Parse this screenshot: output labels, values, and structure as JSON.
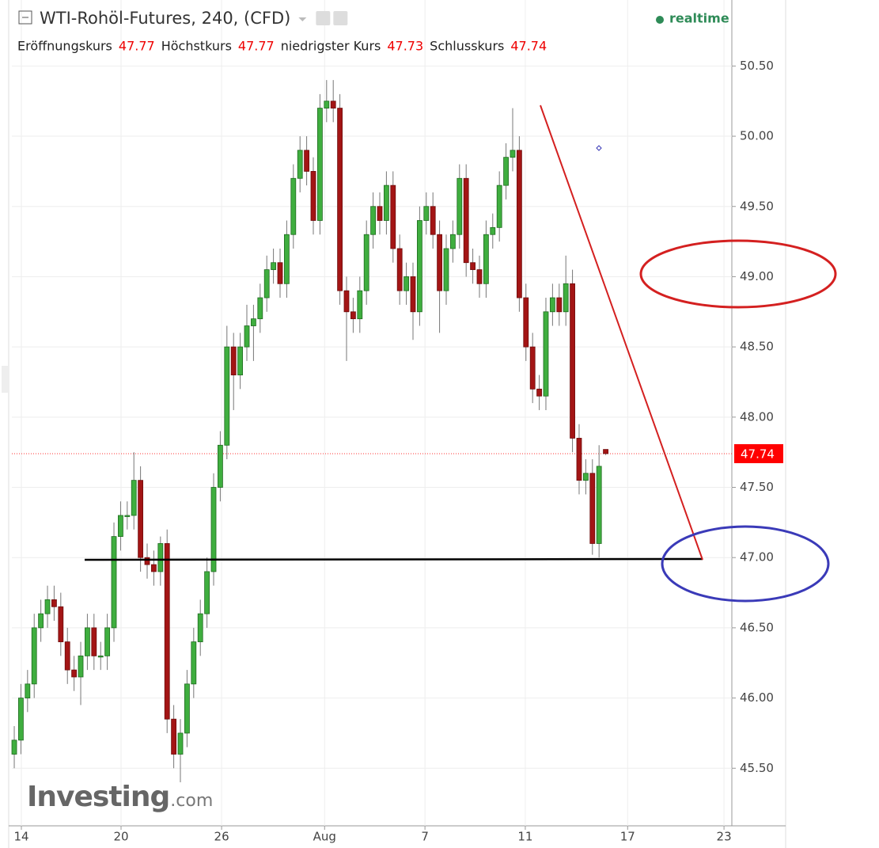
{
  "chart_data": {
    "type": "candlestick",
    "title": "WTI-Rohöl-Futures, 240, (CFD)",
    "status": "realtime",
    "ohlc_labels": [
      "Eröffnungskurs",
      "Höchstkurs",
      "niedrigster Kurs",
      "Schlusskurs"
    ],
    "ohlc_values": [
      47.77,
      47.77,
      47.73,
      47.74
    ],
    "watermark": "Investing",
    "watermark_suffix": ".com",
    "last_price": 47.74,
    "up_color": "#3fae3f",
    "down_color": "#a31515",
    "x": [
      0,
      1,
      2,
      3,
      4,
      5,
      6,
      7,
      8,
      9,
      10,
      11,
      12,
      13,
      14,
      15,
      16,
      17,
      18,
      19,
      20,
      21,
      22,
      23,
      24,
      25,
      26,
      27,
      28,
      29,
      30,
      31,
      32,
      33,
      34,
      35,
      36,
      37,
      38,
      39,
      40,
      41,
      42,
      43,
      44,
      45,
      46,
      47,
      48,
      49,
      50,
      51,
      52,
      53,
      54,
      55,
      56,
      57,
      58,
      59,
      60,
      61,
      62,
      63,
      64,
      65,
      66,
      67,
      68,
      69,
      70,
      71,
      72,
      73,
      74,
      75,
      76,
      77,
      78,
      79,
      80,
      81,
      82,
      83,
      84,
      85,
      86,
      87,
      88,
      89
    ],
    "open": [
      45.6,
      45.7,
      46.0,
      46.1,
      46.5,
      46.6,
      46.7,
      46.65,
      46.4,
      46.2,
      46.15,
      46.3,
      46.5,
      46.3,
      46.3,
      46.5,
      47.15,
      47.3,
      47.3,
      47.55,
      47.0,
      46.95,
      46.9,
      47.1,
      45.85,
      45.6,
      45.75,
      46.1,
      46.4,
      46.6,
      46.9,
      47.5,
      47.8,
      48.5,
      48.3,
      48.5,
      48.65,
      48.7,
      48.85,
      49.05,
      49.1,
      48.95,
      49.3,
      49.7,
      49.9,
      49.75,
      49.4,
      50.2,
      50.25,
      50.2,
      48.9,
      48.75,
      48.7,
      48.9,
      49.3,
      49.5,
      49.4,
      49.65,
      49.2,
      48.9,
      49.0,
      48.75,
      49.4,
      49.5,
      49.3,
      48.9,
      49.2,
      49.3,
      49.7,
      49.1,
      49.05,
      48.95,
      49.3,
      49.35,
      49.65,
      49.85,
      49.9,
      48.85,
      48.5,
      48.2,
      48.15,
      48.75,
      48.85,
      48.75,
      48.95,
      47.85,
      47.55,
      47.6,
      47.1,
      47.77
    ],
    "high": [
      45.8,
      46.1,
      46.2,
      46.6,
      46.7,
      46.8,
      46.8,
      46.75,
      46.5,
      46.3,
      46.4,
      46.6,
      46.6,
      46.4,
      46.6,
      47.25,
      47.4,
      47.4,
      47.75,
      47.65,
      47.1,
      47.05,
      47.15,
      47.2,
      45.95,
      45.85,
      46.2,
      46.5,
      46.7,
      47.0,
      47.6,
      47.9,
      48.65,
      48.6,
      48.6,
      48.8,
      48.8,
      48.95,
      49.15,
      49.2,
      49.2,
      49.4,
      49.8,
      50.0,
      50.0,
      49.85,
      50.3,
      50.4,
      50.4,
      50.3,
      49.0,
      48.85,
      49.0,
      49.4,
      49.6,
      49.6,
      49.75,
      49.75,
      49.3,
      49.1,
      49.1,
      49.5,
      49.6,
      49.6,
      49.4,
      49.3,
      49.4,
      49.8,
      49.8,
      49.2,
      49.15,
      49.4,
      49.45,
      49.75,
      49.95,
      50.2,
      50.0,
      48.95,
      48.6,
      48.3,
      48.85,
      48.95,
      48.95,
      49.15,
      49.05,
      47.95,
      47.7,
      47.7,
      47.8,
      47.77
    ],
    "low": [
      45.5,
      45.6,
      45.9,
      46.0,
      46.4,
      46.5,
      46.55,
      46.3,
      46.1,
      46.05,
      45.95,
      46.2,
      46.2,
      46.2,
      46.2,
      46.4,
      47.05,
      47.2,
      47.2,
      46.9,
      46.85,
      46.8,
      46.8,
      45.75,
      45.5,
      45.4,
      45.65,
      46.0,
      46.3,
      46.5,
      46.8,
      47.4,
      47.7,
      48.05,
      48.2,
      48.4,
      48.4,
      48.6,
      48.75,
      48.95,
      48.85,
      48.85,
      49.2,
      49.6,
      49.65,
      49.3,
      49.3,
      50.1,
      50.1,
      48.8,
      48.4,
      48.6,
      48.6,
      48.8,
      49.2,
      49.3,
      49.3,
      49.1,
      48.8,
      48.8,
      48.55,
      48.65,
      49.3,
      49.2,
      48.6,
      48.8,
      49.1,
      49.2,
      49.0,
      48.95,
      48.85,
      48.85,
      49.2,
      49.25,
      49.55,
      49.75,
      48.75,
      48.4,
      48.1,
      48.05,
      48.05,
      48.65,
      48.65,
      48.65,
      47.75,
      47.45,
      47.45,
      47.02,
      47.0,
      47.73
    ],
    "close": [
      45.7,
      46.0,
      46.1,
      46.5,
      46.6,
      46.7,
      46.65,
      46.4,
      46.2,
      46.15,
      46.3,
      46.5,
      46.3,
      46.3,
      46.5,
      47.15,
      47.3,
      47.3,
      47.55,
      47.0,
      46.95,
      46.9,
      47.1,
      45.85,
      45.6,
      45.75,
      46.1,
      46.4,
      46.6,
      46.9,
      47.5,
      47.8,
      48.5,
      48.3,
      48.5,
      48.65,
      48.7,
      48.85,
      49.05,
      49.1,
      48.95,
      49.3,
      49.7,
      49.9,
      49.75,
      49.4,
      50.2,
      50.25,
      50.2,
      48.9,
      48.75,
      48.7,
      48.9,
      49.3,
      49.5,
      49.4,
      49.65,
      49.2,
      48.9,
      49.0,
      48.75,
      49.4,
      49.5,
      49.3,
      48.9,
      49.2,
      49.3,
      49.7,
      49.1,
      49.05,
      48.95,
      49.3,
      49.35,
      49.65,
      49.85,
      49.9,
      48.85,
      48.5,
      48.2,
      48.15,
      48.75,
      48.85,
      48.75,
      48.95,
      47.85,
      47.55,
      47.6,
      47.1,
      47.65,
      47.74
    ],
    "xlim": [
      -0.36,
      107.98
    ],
    "xticks": [
      {
        "value": 1.07,
        "label": "14"
      },
      {
        "value": 16.07,
        "label": "20"
      },
      {
        "value": 31.2,
        "label": "26"
      },
      {
        "value": 46.7,
        "label": "Aug"
      },
      {
        "value": 61.8,
        "label": "7"
      },
      {
        "value": 76.9,
        "label": "11"
      },
      {
        "value": 92.3,
        "label": "17"
      },
      {
        "value": 106.8,
        "label": "23"
      }
    ],
    "ylim": [
      45.09,
      50.97
    ],
    "yticks": [
      {
        "value": 45.5,
        "label": "45.50"
      },
      {
        "value": 46.0,
        "label": "46.00"
      },
      {
        "value": 46.5,
        "label": "46.50"
      },
      {
        "value": 47.0,
        "label": "47.00"
      },
      {
        "value": 47.5,
        "label": "47.50"
      },
      {
        "value": 48.0,
        "label": "48.00"
      },
      {
        "value": 48.5,
        "label": "48.50"
      },
      {
        "value": 49.0,
        "label": "49.00"
      },
      {
        "value": 49.5,
        "label": "49.50"
      },
      {
        "value": 50.0,
        "label": "50.00"
      },
      {
        "value": 50.5,
        "label": "50.50"
      }
    ],
    "grid": true
  }
}
